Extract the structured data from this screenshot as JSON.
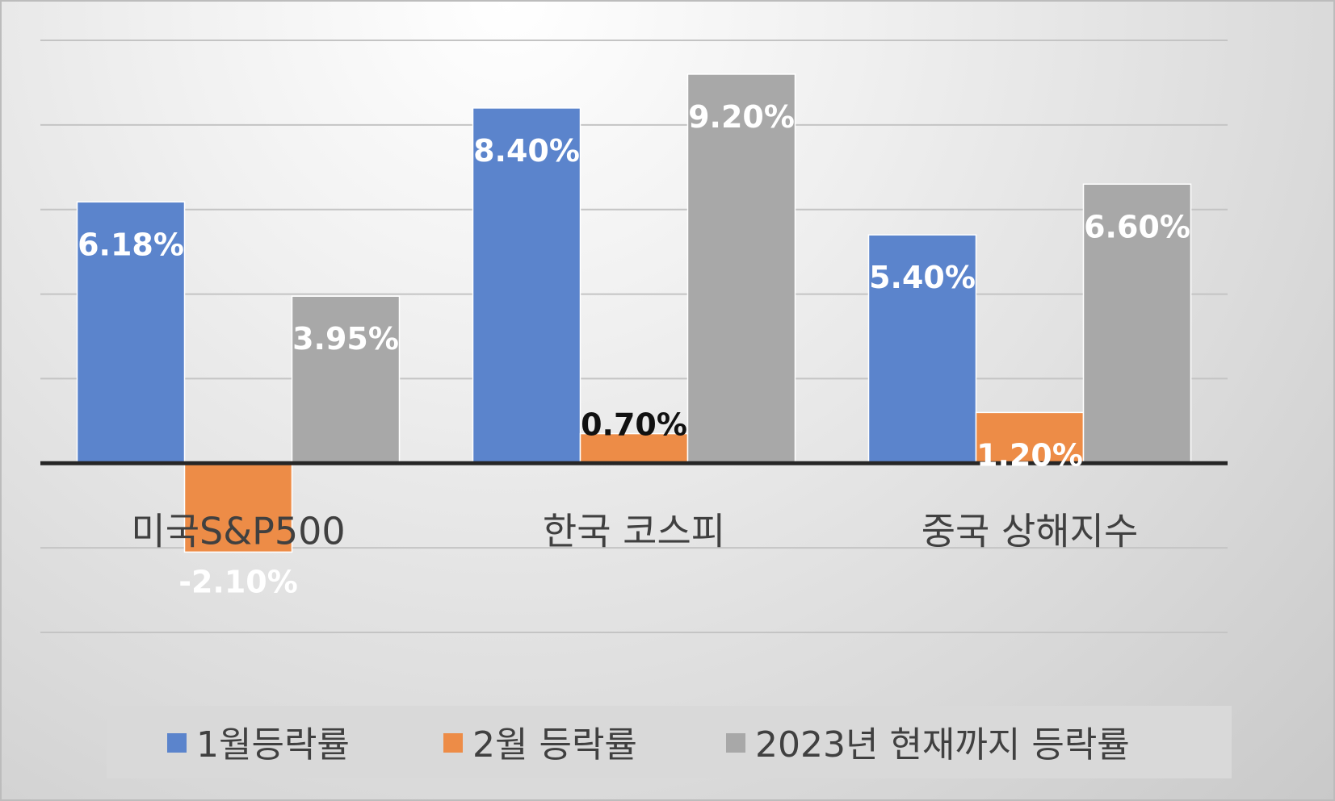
{
  "chart_data": {
    "type": "bar",
    "categories": [
      "미국S&P500",
      "한국 코스피",
      "중국 상해지수"
    ],
    "series": [
      {
        "name": "1월등락률",
        "color": "#5b84cc",
        "values": [
          6.18,
          8.4,
          5.4
        ],
        "labels": [
          "6.18%",
          "8.40%",
          "5.40%"
        ],
        "label_color": "#ffffff"
      },
      {
        "name": "2월 등락률",
        "color": "#ed8c47",
        "values": [
          -2.1,
          0.7,
          1.2
        ],
        "labels": [
          "-2.10%",
          "0.70%",
          "1.20%"
        ],
        "label_colors": [
          "#ffffff",
          "#111111",
          "#ffffff"
        ]
      },
      {
        "name": "2023년 현재까지 등락률",
        "color": "#a8a8a8",
        "values": [
          3.95,
          9.2,
          6.6
        ],
        "labels": [
          "3.95%",
          "9.20%",
          "6.60%"
        ],
        "label_color": "#ffffff"
      }
    ],
    "ylim": [
      -4,
      10
    ],
    "y_gridline_step": 2,
    "y_tick_labels_shown": false,
    "grid": true,
    "legend_position": "bottom",
    "title": "",
    "xlabel": "",
    "ylabel": ""
  }
}
